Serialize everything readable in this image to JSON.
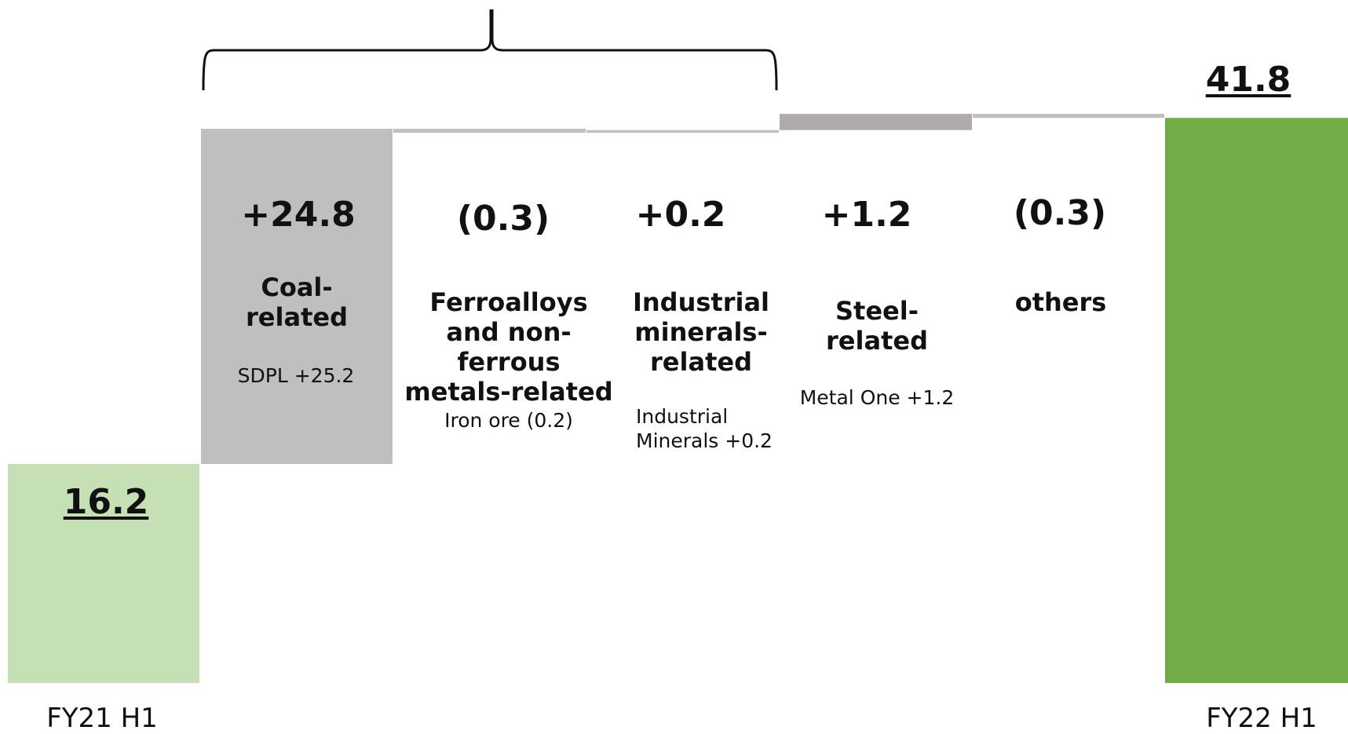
{
  "chart_data": {
    "type": "bar",
    "subtype": "waterfall",
    "title": "",
    "xlabel": "",
    "ylabel": "",
    "ylim": [
      0,
      45
    ],
    "grid": false,
    "colors": {
      "start_total": "#c5e0b4",
      "end_total": "#70ad47",
      "coal": "#bfbfbf",
      "steel": "#afabab",
      "small_step": "#bfbfbf"
    },
    "start": {
      "label": "FY21 H1",
      "value": 16.2,
      "value_text": "16.2"
    },
    "end": {
      "label": "FY22 H1",
      "value": 41.8,
      "value_text": "41.8"
    },
    "steps": [
      {
        "key": "coal",
        "name": "Coal-\nrelated",
        "delta": 24.8,
        "delta_text": "+24.8",
        "detail": "SDPL +25.2"
      },
      {
        "key": "ferro",
        "name": "Ferroalloys\nand non-ferrous\nmetals-related",
        "delta": -0.3,
        "delta_text": "(0.3)",
        "detail": "Iron ore (0.2)"
      },
      {
        "key": "industrial",
        "name": "Industrial\nminerals-\nrelated",
        "delta": 0.2,
        "delta_text": "+0.2",
        "detail": "Industrial\nMinerals +0.2"
      },
      {
        "key": "steel",
        "name": "Steel-\nrelated",
        "delta": 1.2,
        "delta_text": "+1.2",
        "detail": "Metal One +1.2"
      },
      {
        "key": "others",
        "name": "others",
        "delta": -0.3,
        "delta_text": "(0.3)",
        "detail": ""
      }
    ],
    "bracket": {
      "spans": [
        "coal",
        "industrial"
      ]
    }
  }
}
